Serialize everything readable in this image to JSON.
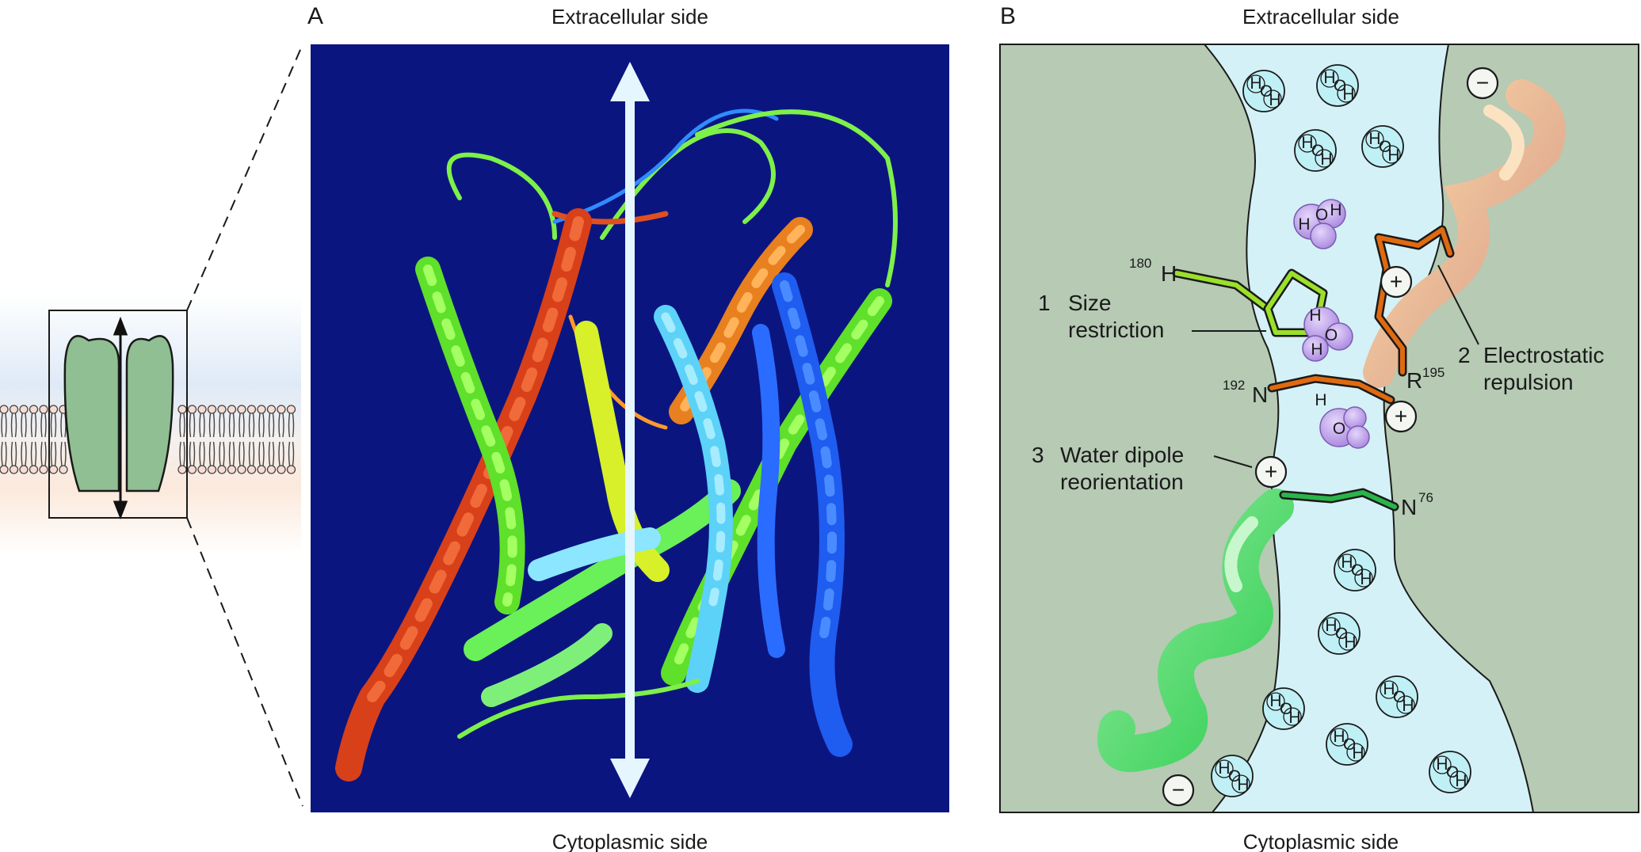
{
  "panel_a": {
    "letter": "A",
    "top_label": "Extracellular side",
    "bottom_label": "Cytoplasmic side"
  },
  "panel_b": {
    "letter": "B",
    "top_label": "Extracellular side",
    "bottom_label": "Cytoplasmic side",
    "annotations": {
      "size_number": "1",
      "size_line1": "Size",
      "size_line2": "restriction",
      "electro_number": "2",
      "electro_line1": "Electrostatic",
      "electro_line2": "repulsion",
      "dipole_number": "3",
      "dipole_line1": "Water dipole",
      "dipole_line2": "reorientation"
    },
    "residues": {
      "his_sup": "180",
      "his_letter": "H",
      "asn192_sup": "192",
      "asn192_letter": "N",
      "arg_letter": "R",
      "arg_sup": "195",
      "asn76_letter": "N",
      "asn76_sup": "76"
    },
    "charges": {
      "plus": "+",
      "minus": "−"
    },
    "atoms": {
      "H": "H",
      "O": "O"
    }
  },
  "colors": {
    "panel_a_background": "#0b1580",
    "panel_b_background": "#b6cab4",
    "pore_water": "#d4f1f7",
    "channel_green": "#8fbf93",
    "membrane_extracellular": "#dfeaf7",
    "membrane_cytoplasmic": "#fbe9dc",
    "arg_residue": "#e06a10",
    "his_residue": "#9be02a",
    "asn76_residue": "#2ab44a",
    "water_in_pore": "#b99ae6"
  }
}
